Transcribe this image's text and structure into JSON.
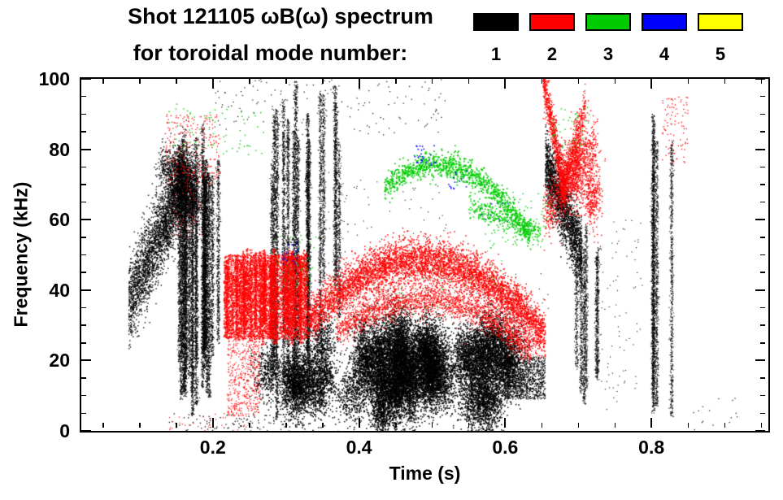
{
  "header": {
    "title_line1": "Shot 121105 ωB(ω) spectrum",
    "title_line2": "for toroidal mode number:"
  },
  "chart_data": {
    "type": "scatter",
    "title": "Shot 121105 ωB(ω) spectrum",
    "subtitle": "for toroidal mode number:",
    "xlabel": "Time (s)",
    "ylabel": "Frequency (kHz)",
    "xlim": [
      0.02,
      0.96
    ],
    "ylim": [
      0,
      100
    ],
    "grid": false,
    "legend_position": "top-right-above-plot",
    "xticks": {
      "major": [
        0.2,
        0.4,
        0.6,
        0.8
      ],
      "labels": [
        "0.2",
        "0.4",
        "0.6",
        "0.8"
      ],
      "minor_step": 0.05
    },
    "yticks": {
      "major": [
        0,
        20,
        40,
        60,
        80,
        100
      ],
      "labels": [
        "0",
        "20",
        "40",
        "60",
        "80",
        "100"
      ],
      "minor_step": 5
    },
    "legend": [
      {
        "label": "1",
        "mode": 1,
        "color": "#000000"
      },
      {
        "label": "2",
        "mode": 2,
        "color": "#ff0000"
      },
      {
        "label": "3",
        "mode": 3,
        "color": "#00cc00"
      },
      {
        "label": "4",
        "mode": 4,
        "color": "#0000ff"
      },
      {
        "label": "5",
        "mode": 5,
        "color": "#ffff00"
      }
    ],
    "seed": 121105,
    "features": [
      {
        "mode": 1,
        "kind": "chirp",
        "desc": "rising chirp 36-74 kHz at 0.09-0.17 s",
        "t": [
          0.085,
          0.165
        ],
        "f": [
          36,
          74
        ],
        "spread": 6,
        "n": 2600,
        "size": 1.4
      },
      {
        "mode": 1,
        "kind": "clusters",
        "desc": "dense blob 56-80 kHz near 0.15 s",
        "t": [
          0.125,
          0.175
        ],
        "f": [
          56,
          80
        ],
        "clusters": 12,
        "per": 160,
        "sigt": 0.006,
        "sigf": 3,
        "size": 1.4
      },
      {
        "mode": 1,
        "kind": "vstripes",
        "t": [
          0.15,
          0.215
        ],
        "f": [
          4,
          88
        ],
        "stripes": 22,
        "size": 1.2
      },
      {
        "mode": 1,
        "kind": "vstripes",
        "desc": "tall broadband bursts 0.27-0.33 s",
        "t": [
          0.262,
          0.335
        ],
        "f": [
          0,
          100
        ],
        "stripes": 11,
        "size": 1.2
      },
      {
        "mode": 1,
        "kind": "vstripes",
        "t": [
          0.335,
          0.38
        ],
        "f": [
          25,
          100
        ],
        "stripes": 5,
        "size": 1.1
      },
      {
        "mode": 1,
        "kind": "clusters",
        "desc": "broad low-frequency band 8-26 kHz, 0.27-0.62 s",
        "t": [
          0.27,
          0.62
        ],
        "f": [
          8,
          26
        ],
        "clusters": 46,
        "per": 380,
        "sigt": 0.009,
        "sigf": 4.5,
        "size": 1.5
      },
      {
        "mode": 1,
        "kind": "clusters",
        "t": [
          0.42,
          0.5
        ],
        "f": [
          6,
          28
        ],
        "clusters": 14,
        "per": 300,
        "sigt": 0.007,
        "sigf": 5,
        "size": 1.5
      },
      {
        "mode": 1,
        "kind": "band",
        "t": [
          0.6,
          0.655
        ],
        "f": [
          9,
          21
        ],
        "n": 900,
        "size": 1.3
      },
      {
        "mode": 1,
        "kind": "chirp",
        "desc": "falling chirp 76-50 kHz near 0.67 s",
        "t": [
          0.655,
          0.705
        ],
        "f": [
          76,
          50
        ],
        "spread": 5,
        "n": 1800,
        "size": 1.5
      },
      {
        "mode": 1,
        "kind": "vstripes",
        "t": [
          0.695,
          0.727
        ],
        "f": [
          5,
          60
        ],
        "stripes": 6,
        "size": 1.1
      },
      {
        "mode": 1,
        "kind": "vstripes",
        "desc": "bursts near 0.80-0.83 s",
        "t": [
          0.79,
          0.835
        ],
        "f": [
          0,
          96
        ],
        "stripes": 5,
        "size": 1.1
      },
      {
        "mode": 1,
        "kind": "specks",
        "t": [
          0.2,
          0.52
        ],
        "f": [
          84,
          100
        ],
        "n": 150,
        "size": 1.2
      },
      {
        "mode": 1,
        "kind": "specks",
        "t": [
          0.14,
          0.3
        ],
        "f": [
          0,
          5
        ],
        "n": 90,
        "size": 1.3
      },
      {
        "mode": 1,
        "kind": "specks",
        "t": [
          0.35,
          0.52
        ],
        "f": [
          30,
          75
        ],
        "n": 120,
        "size": 1.1
      },
      {
        "mode": 1,
        "kind": "specks",
        "t": [
          0.55,
          0.66
        ],
        "f": [
          25,
          45
        ],
        "n": 60,
        "size": 1.1
      },
      {
        "mode": 1,
        "kind": "specks",
        "t": [
          0.73,
          0.79
        ],
        "f": [
          5,
          60
        ],
        "n": 80,
        "size": 1.1
      },
      {
        "mode": 1,
        "kind": "specks",
        "t": [
          0.42,
          0.47
        ],
        "f": [
          0,
          6
        ],
        "n": 40,
        "size": 1.2
      },
      {
        "mode": 1,
        "kind": "specks",
        "t": [
          0.84,
          0.92
        ],
        "f": [
          0,
          10
        ],
        "n": 15,
        "size": 1.2
      },
      {
        "mode": 2,
        "kind": "vstripes",
        "desc": "strong striated band 24-52 kHz, 0.22-0.33 s",
        "t": [
          0.215,
          0.33
        ],
        "f": [
          24,
          52
        ],
        "stripes": 34,
        "size": 1.3
      },
      {
        "mode": 2,
        "kind": "band",
        "t": [
          0.215,
          0.33
        ],
        "f": [
          26,
          50
        ],
        "n": 4000,
        "size": 1.4
      },
      {
        "mode": 2,
        "kind": "band",
        "t": [
          0.22,
          0.265
        ],
        "f": [
          4,
          26
        ],
        "n": 500,
        "size": 1.2
      },
      {
        "mode": 2,
        "kind": "arc",
        "desc": "main arched branch peaking ~48 kHz near 0.47 s",
        "t": [
          0.33,
          0.655
        ],
        "fe": [
          31,
          27
        ],
        "fpeak": 48,
        "tpeak": 0.465,
        "spread": 3.2,
        "n": 5200,
        "size": 1.5
      },
      {
        "mode": 2,
        "kind": "arc",
        "desc": "lower arched branch peaking ~37 kHz",
        "t": [
          0.37,
          0.635
        ],
        "fe": [
          28,
          23
        ],
        "fpeak": 37,
        "tpeak": 0.49,
        "spread": 2.2,
        "n": 2200,
        "size": 1.3
      },
      {
        "mode": 2,
        "kind": "chirp",
        "t": [
          0.652,
          0.682
        ],
        "f": [
          100,
          68
        ],
        "spread": 3,
        "n": 700,
        "size": 1.4
      },
      {
        "mode": 2,
        "kind": "clusters",
        "desc": "high-frequency activity 62-82 kHz near 0.69 s",
        "t": [
          0.66,
          0.72
        ],
        "f": [
          62,
          82
        ],
        "clusters": 10,
        "per": 180,
        "sigt": 0.006,
        "sigf": 4,
        "size": 1.4
      },
      {
        "mode": 2,
        "kind": "chirp",
        "t": [
          0.676,
          0.71
        ],
        "f": [
          66,
          92
        ],
        "spread": 3,
        "n": 500,
        "size": 1.3
      },
      {
        "mode": 2,
        "kind": "specks",
        "t": [
          0.135,
          0.21
        ],
        "f": [
          70,
          90
        ],
        "n": 260,
        "size": 1.3
      },
      {
        "mode": 2,
        "kind": "specks",
        "t": [
          0.145,
          0.185
        ],
        "f": [
          55,
          70
        ],
        "n": 60,
        "size": 1.2
      },
      {
        "mode": 2,
        "kind": "specks",
        "t": [
          0.815,
          0.85
        ],
        "f": [
          76,
          95
        ],
        "n": 90,
        "size": 1.3
      },
      {
        "mode": 2,
        "kind": "specks",
        "t": [
          0.14,
          0.25
        ],
        "f": [
          0,
          5
        ],
        "n": 35,
        "size": 1.2
      },
      {
        "mode": 2,
        "kind": "specks",
        "t": [
          0.6,
          0.65
        ],
        "f": [
          20,
          30
        ],
        "n": 80,
        "size": 1.2
      },
      {
        "mode": 3,
        "kind": "arc",
        "desc": "dotted arched branch peaking ~75 kHz, falling to 55 kHz by 0.63 s",
        "t": [
          0.435,
          0.635
        ],
        "fe": [
          69,
          55
        ],
        "fpeak": 75,
        "tpeak": 0.485,
        "spread": 1.8,
        "n": 1100,
        "size": 1.7
      },
      {
        "mode": 3,
        "kind": "chirp",
        "t": [
          0.55,
          0.648
        ],
        "f": [
          64,
          56
        ],
        "spread": 1.5,
        "n": 320,
        "size": 1.6
      },
      {
        "mode": 3,
        "kind": "specks",
        "t": [
          0.14,
          0.27
        ],
        "f": [
          78,
          93
        ],
        "n": 70,
        "size": 1.4
      },
      {
        "mode": 3,
        "kind": "specks",
        "t": [
          0.28,
          0.345
        ],
        "f": [
          40,
          56
        ],
        "n": 45,
        "size": 1.4
      },
      {
        "mode": 3,
        "kind": "specks",
        "t": [
          0.57,
          0.665
        ],
        "f": [
          52,
          68
        ],
        "n": 90,
        "size": 1.4
      },
      {
        "mode": 3,
        "kind": "specks",
        "t": [
          0.665,
          0.715
        ],
        "f": [
          80,
          92
        ],
        "n": 45,
        "size": 1.4
      },
      {
        "mode": 3,
        "kind": "specks",
        "t": [
          0.36,
          0.52
        ],
        "f": [
          28,
          44
        ],
        "n": 40,
        "size": 1.2
      },
      {
        "mode": 3,
        "kind": "specks",
        "t": [
          0.5,
          0.6
        ],
        "f": [
          40,
          52
        ],
        "n": 30,
        "size": 1.2
      },
      {
        "mode": 4,
        "kind": "specks",
        "t": [
          0.295,
          0.32
        ],
        "f": [
          47,
          54
        ],
        "n": 18,
        "size": 1.6
      },
      {
        "mode": 4,
        "kind": "specks",
        "desc": "sparse n=4 points ~78 kHz near 0.49 s",
        "t": [
          0.475,
          0.505
        ],
        "f": [
          75,
          82
        ],
        "n": 26,
        "size": 1.6
      },
      {
        "mode": 4,
        "kind": "specks",
        "t": [
          0.52,
          0.55
        ],
        "f": [
          67,
          74
        ],
        "n": 14,
        "size": 1.5
      },
      {
        "mode": 4,
        "kind": "specks",
        "t": [
          0.56,
          0.61
        ],
        "f": [
          58,
          66
        ],
        "n": 10,
        "size": 1.4
      }
    ]
  }
}
